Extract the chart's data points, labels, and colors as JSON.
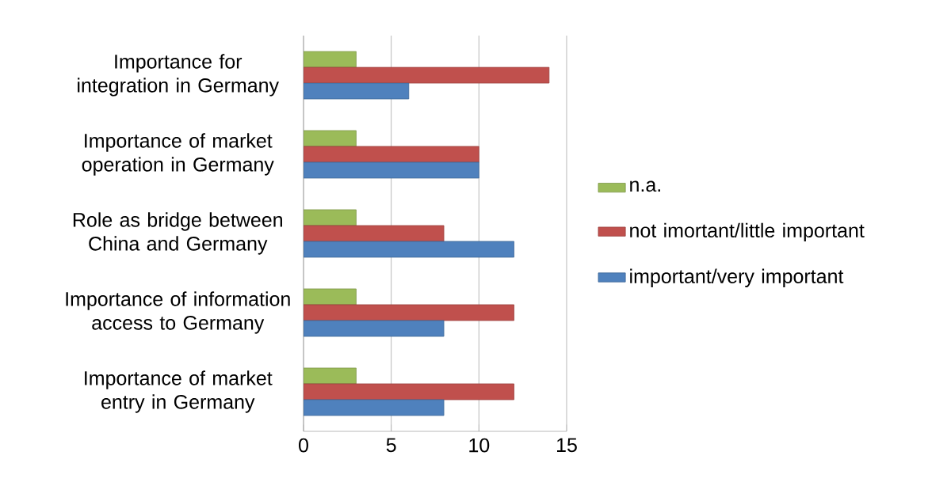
{
  "chart_data": {
    "type": "bar",
    "orientation": "horizontal",
    "categories": [
      "Importance for integration in Germany",
      "Importance of market operation in Germany",
      "Role as bridge between China and Germany",
      "Importance of information access to Germany",
      "Importance of market entry in Germany"
    ],
    "series": [
      {
        "name": "n.a.",
        "color": "#9bbb59",
        "values": [
          3,
          3,
          3,
          3,
          3
        ]
      },
      {
        "name": "not imortant/little important",
        "color": "#c0504d",
        "values": [
          14,
          10,
          8,
          12,
          12
        ]
      },
      {
        "name": "important/very important",
        "color": "#4f81bd",
        "values": [
          6,
          10,
          12,
          8,
          8
        ]
      }
    ],
    "xlim": [
      0,
      15
    ],
    "xticks": [
      0,
      5,
      10,
      15
    ],
    "grid": "x",
    "legend": "right"
  }
}
